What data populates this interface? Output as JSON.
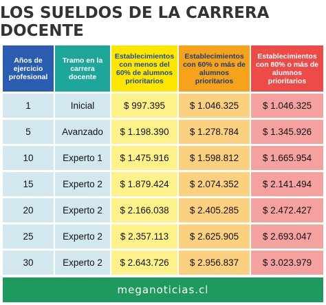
{
  "title": "LOS SUELDOS DE LA CARRERA DOCENTE",
  "headers": {
    "years": "Años de ejercicio profesional",
    "tramo": "Tramo en la carrera docente",
    "col1": "Establecimientos con menos del 60% de alumnos prioritarios",
    "col2": "Establecimientos con 60% o más de alumnos prioritarios",
    "col3": "Establecimientos con 80% o más de alumnos prioritarios"
  },
  "rows": [
    {
      "years": "1",
      "tramo": "Inicial",
      "c1": "$ 997.395",
      "c2": "$ 1.046.325",
      "c3": "$ 1.046.325"
    },
    {
      "years": "5",
      "tramo": "Avanzado",
      "c1": "$ 1.198.390",
      "c2": "$ 1.278.784",
      "c3": "$ 1.345.926"
    },
    {
      "years": "10",
      "tramo": "Experto 1",
      "c1": "$ 1.475.916",
      "c2": "$ 1.598.812",
      "c3": "$ 1.665.954"
    },
    {
      "years": "15",
      "tramo": "Experto 2",
      "c1": "$ 1.879.424",
      "c2": "$ 2.074.352",
      "c3": "$ 2.141.494"
    },
    {
      "years": "20",
      "tramo": "Experto 2",
      "c1": "$ 2.166.038",
      "c2": "$ 2.405.285",
      "c3": "$ 2.472.427"
    },
    {
      "years": "25",
      "tramo": "Experto 2",
      "c1": "$ 2.357.113",
      "c2": "$ 2.625.905",
      "c3": "$ 2.693.047"
    },
    {
      "years": "30",
      "tramo": "Experto 2",
      "c1": "$ 2.643.726",
      "c2": "$ 2.956.837",
      "c3": "$ 3.023.979"
    }
  ],
  "footer": "meganoticias.cl",
  "colors": {
    "header_years": "#2a5db0",
    "header_tramo": "#1fa69a",
    "header_col1": "#ffe600",
    "header_col2": "#f7a21b",
    "header_col3": "#ec4b48",
    "footer": "#1f9a5e"
  }
}
